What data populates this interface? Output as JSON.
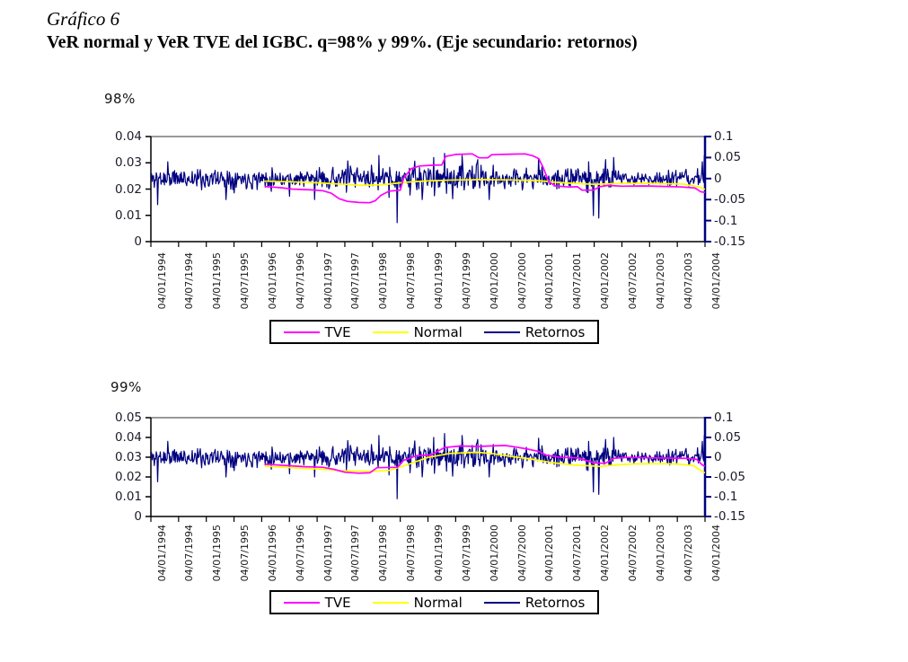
{
  "header": {
    "label": "Gráfico 6",
    "title": "VeR normal y VeR TVE del IGBC. q=98% y 99%. (Eje secundario: retornos)"
  },
  "legend": {
    "items": [
      {
        "label": "TVE",
        "color": "#FF00FF"
      },
      {
        "label": "Normal",
        "color": "#FFFF00"
      },
      {
        "label": "Retornos",
        "color": "#000080"
      }
    ]
  },
  "colors": {
    "tve": "#FF00FF",
    "normal": "#FFFF00",
    "retornos": "#000080",
    "axis_left_bottom": "#000000",
    "axis_top": "#999999",
    "axis_right": "#000080"
  },
  "chart_data": [
    {
      "type": "line",
      "title": "98%",
      "xlabel": "",
      "ylabel": "",
      "legend_position": "bottom",
      "grid": false,
      "x_range": [
        1994.0,
        2004.0
      ],
      "x_tick_labels": [
        "04/01/1994",
        "04/07/1994",
        "04/01/1995",
        "04/07/1995",
        "04/01/1996",
        "04/07/1996",
        "04/01/1997",
        "04/07/1997",
        "04/01/1998",
        "04/07/1998",
        "04/01/1999",
        "04/07/1999",
        "04/01/2000",
        "04/07/2000",
        "04/01/2001",
        "04/07/2001",
        "04/01/2002",
        "04/07/2002",
        "04/01/2003",
        "04/07/2003",
        "04/01/2004"
      ],
      "left_axis": {
        "min": 0,
        "max": 0.04,
        "tick_labels": [
          "0.04",
          "0.03",
          "0.02",
          "0.01",
          "0"
        ],
        "tick_values": [
          0.04,
          0.03,
          0.02,
          0.01,
          0
        ]
      },
      "right_axis": {
        "min": -0.15,
        "max": 0.1,
        "tick_labels": [
          "0.1",
          "0.05",
          "0",
          "-0.05",
          "-0.1",
          "-0.15"
        ],
        "tick_values": [
          0.1,
          0.05,
          0,
          -0.05,
          -0.1,
          -0.15
        ]
      },
      "series": [
        {
          "name": "TVE",
          "color": "#FF00FF",
          "axis": "left",
          "points": [
            [
              1996.05,
              0.021
            ],
            [
              1996.35,
              0.0205
            ],
            [
              1996.55,
              0.02
            ],
            [
              1996.9,
              0.0197
            ],
            [
              1997.1,
              0.0194
            ],
            [
              1997.25,
              0.0185
            ],
            [
              1997.4,
              0.0163
            ],
            [
              1997.55,
              0.0153
            ],
            [
              1997.75,
              0.0149
            ],
            [
              1997.95,
              0.0148
            ],
            [
              1998.05,
              0.0156
            ],
            [
              1998.15,
              0.0176
            ],
            [
              1998.3,
              0.0192
            ],
            [
              1998.5,
              0.0196
            ],
            [
              1998.56,
              0.0242
            ],
            [
              1998.7,
              0.0278
            ],
            [
              1998.85,
              0.0288
            ],
            [
              1999.1,
              0.0291
            ],
            [
              1999.25,
              0.0292
            ],
            [
              1999.32,
              0.0324
            ],
            [
              1999.5,
              0.0332
            ],
            [
              1999.8,
              0.0334
            ],
            [
              1999.92,
              0.0319
            ],
            [
              2000.08,
              0.0319
            ],
            [
              2000.15,
              0.0331
            ],
            [
              2000.5,
              0.0333
            ],
            [
              2000.75,
              0.0334
            ],
            [
              2000.9,
              0.0326
            ],
            [
              2001.0,
              0.0316
            ],
            [
              2001.08,
              0.0282
            ],
            [
              2001.18,
              0.0228
            ],
            [
              2001.3,
              0.0212
            ],
            [
              2001.55,
              0.0208
            ],
            [
              2001.7,
              0.0209
            ],
            [
              2001.78,
              0.0196
            ],
            [
              2001.98,
              0.0196
            ],
            [
              2002.1,
              0.0209
            ],
            [
              2002.25,
              0.0214
            ],
            [
              2002.5,
              0.0211
            ],
            [
              2002.9,
              0.0212
            ],
            [
              2003.3,
              0.021
            ],
            [
              2003.6,
              0.0208
            ],
            [
              2003.82,
              0.0204
            ],
            [
              2003.92,
              0.019
            ],
            [
              2004.0,
              0.0187
            ]
          ]
        },
        {
          "name": "Normal",
          "color": "#FFFF00",
          "axis": "left",
          "points": [
            [
              1996.05,
              0.023
            ],
            [
              1996.5,
              0.0228
            ],
            [
              1997.0,
              0.0224
            ],
            [
              1997.5,
              0.0218
            ],
            [
              1997.8,
              0.0214
            ],
            [
              1998.2,
              0.0217
            ],
            [
              1998.6,
              0.0226
            ],
            [
              1999.0,
              0.0231
            ],
            [
              1999.5,
              0.0235
            ],
            [
              2000.0,
              0.0236
            ],
            [
              2000.5,
              0.0235
            ],
            [
              2001.0,
              0.0232
            ],
            [
              2001.3,
              0.0226
            ],
            [
              2001.7,
              0.0221
            ],
            [
              2002.0,
              0.0218
            ],
            [
              2002.4,
              0.0221
            ],
            [
              2002.8,
              0.0222
            ],
            [
              2003.2,
              0.0221
            ],
            [
              2003.6,
              0.0219
            ],
            [
              2003.9,
              0.0208
            ],
            [
              2004.0,
              0.0199
            ]
          ]
        },
        {
          "name": "Retornos",
          "color": "#000080",
          "axis": "right",
          "noise": {
            "seed": 11,
            "n": 820,
            "mean": 0,
            "volatility": [
              [
                1994.0,
                0.012
              ],
              [
                1996.2,
                0.01
              ],
              [
                1997.2,
                0.013
              ],
              [
                1998.55,
                0.016
              ],
              [
                2000.35,
                0.012
              ],
              [
                2001.5,
                0.013
              ],
              [
                2002.4,
                0.0075
              ],
              [
                2003.25,
                0.0095
              ]
            ],
            "spikes": [
              [
                1994.12,
                -0.062
              ],
              [
                1994.3,
                0.04
              ],
              [
                1995.35,
                -0.05
              ],
              [
                1996.5,
                -0.042
              ],
              [
                1996.95,
                -0.05
              ],
              [
                1997.55,
                0.042
              ],
              [
                1998.12,
                0.055
              ],
              [
                1998.3,
                -0.045
              ],
              [
                1998.44,
                -0.105
              ],
              [
                1998.9,
                -0.05
              ],
              [
                1999.1,
                0.05
              ],
              [
                1999.3,
                0.06
              ],
              [
                1999.45,
                -0.048
              ],
              [
                1999.62,
                0.055
              ],
              [
                1999.9,
                0.045
              ],
              [
                2000.1,
                -0.05
              ],
              [
                2001.0,
                0.048
              ],
              [
                2001.9,
                0.04
              ],
              [
                2001.98,
                -0.088
              ],
              [
                2002.08,
                -0.094
              ],
              [
                2002.2,
                0.045
              ],
              [
                2002.35,
                0.05
              ],
              [
                2003.95,
                0.04
              ],
              [
                2003.99,
                0.055
              ]
            ]
          }
        }
      ]
    },
    {
      "type": "line",
      "title": "99%",
      "xlabel": "",
      "ylabel": "",
      "legend_position": "bottom",
      "grid": false,
      "x_range": [
        1994.0,
        2004.0
      ],
      "x_tick_labels": [
        "04/01/1994",
        "04/07/1994",
        "04/01/1995",
        "04/07/1995",
        "04/01/1996",
        "04/07/1996",
        "04/01/1997",
        "04/07/1997",
        "04/01/1998",
        "04/07/1998",
        "04/01/1999",
        "04/07/1999",
        "04/01/2000",
        "04/07/2000",
        "04/01/2001",
        "04/07/2001",
        "04/01/2002",
        "04/07/2002",
        "04/01/2003",
        "04/07/2003",
        "04/01/2004"
      ],
      "left_axis": {
        "min": 0,
        "max": 0.05,
        "tick_labels": [
          "0.05",
          "0.04",
          "0.03",
          "0.02",
          "0.01",
          "0"
        ],
        "tick_values": [
          0.05,
          0.04,
          0.03,
          0.02,
          0.01,
          0
        ]
      },
      "right_axis": {
        "min": -0.15,
        "max": 0.1,
        "tick_labels": [
          "0.1",
          "0.05",
          "0",
          "-0.05",
          "-0.1",
          "-0.15"
        ],
        "tick_values": [
          0.1,
          0.05,
          0,
          -0.05,
          -0.1,
          -0.15
        ]
      },
      "series": [
        {
          "name": "TVE",
          "color": "#FF00FF",
          "axis": "left",
          "points": [
            [
              1996.05,
              0.0265
            ],
            [
              1996.5,
              0.0257
            ],
            [
              1996.8,
              0.0252
            ],
            [
              1997.1,
              0.0249
            ],
            [
              1997.3,
              0.0239
            ],
            [
              1997.5,
              0.0224
            ],
            [
              1997.75,
              0.0219
            ],
            [
              1997.95,
              0.0221
            ],
            [
              1998.08,
              0.0247
            ],
            [
              1998.45,
              0.0249
            ],
            [
              1998.56,
              0.0284
            ],
            [
              1998.8,
              0.0308
            ],
            [
              1999.05,
              0.0311
            ],
            [
              1999.3,
              0.0349
            ],
            [
              1999.6,
              0.0357
            ],
            [
              1999.9,
              0.0354
            ],
            [
              2000.1,
              0.0357
            ],
            [
              2000.4,
              0.0359
            ],
            [
              2000.6,
              0.0351
            ],
            [
              2000.8,
              0.0341
            ],
            [
              2001.0,
              0.0329
            ],
            [
              2001.15,
              0.0309
            ],
            [
              2001.4,
              0.0299
            ],
            [
              2001.7,
              0.0297
            ],
            [
              2001.85,
              0.0284
            ],
            [
              2002.0,
              0.0271
            ],
            [
              2002.2,
              0.0269
            ],
            [
              2002.35,
              0.0294
            ],
            [
              2002.6,
              0.0299
            ],
            [
              2003.0,
              0.0297
            ],
            [
              2003.4,
              0.0295
            ],
            [
              2003.7,
              0.0294
            ],
            [
              2003.85,
              0.0289
            ],
            [
              2003.95,
              0.0261
            ],
            [
              2004.0,
              0.0254
            ]
          ]
        },
        {
          "name": "Normal",
          "color": "#FFFF00",
          "axis": "left",
          "points": [
            [
              1996.05,
              0.0255
            ],
            [
              1996.6,
              0.0246
            ],
            [
              1997.1,
              0.0239
            ],
            [
              1997.5,
              0.0231
            ],
            [
              1997.9,
              0.0228
            ],
            [
              1998.3,
              0.0233
            ],
            [
              1998.6,
              0.0259
            ],
            [
              1999.0,
              0.0299
            ],
            [
              1999.4,
              0.0319
            ],
            [
              1999.9,
              0.0325
            ],
            [
              2000.2,
              0.0317
            ],
            [
              2000.5,
              0.0304
            ],
            [
              2000.9,
              0.0289
            ],
            [
              2001.2,
              0.0274
            ],
            [
              2001.6,
              0.0261
            ],
            [
              2001.9,
              0.0257
            ],
            [
              2002.1,
              0.0253
            ],
            [
              2002.4,
              0.0261
            ],
            [
              2002.7,
              0.0266
            ],
            [
              2003.1,
              0.0267
            ],
            [
              2003.5,
              0.0266
            ],
            [
              2003.8,
              0.0257
            ],
            [
              2003.93,
              0.0231
            ],
            [
              2004.0,
              0.0221
            ]
          ]
        },
        {
          "name": "Retornos",
          "color": "#000080",
          "axis": "right",
          "noise": {
            "seed": 11,
            "n": 820,
            "mean": 0,
            "volatility": [
              [
                1994.0,
                0.012
              ],
              [
                1996.2,
                0.01
              ],
              [
                1997.2,
                0.013
              ],
              [
                1998.55,
                0.016
              ],
              [
                2000.35,
                0.012
              ],
              [
                2001.5,
                0.013
              ],
              [
                2002.4,
                0.0075
              ],
              [
                2003.25,
                0.0095
              ]
            ],
            "spikes": [
              [
                1994.12,
                -0.062
              ],
              [
                1994.3,
                0.04
              ],
              [
                1995.35,
                -0.05
              ],
              [
                1996.5,
                -0.042
              ],
              [
                1996.95,
                -0.05
              ],
              [
                1997.55,
                0.042
              ],
              [
                1998.12,
                0.055
              ],
              [
                1998.3,
                -0.045
              ],
              [
                1998.44,
                -0.105
              ],
              [
                1998.9,
                -0.05
              ],
              [
                1999.1,
                0.05
              ],
              [
                1999.3,
                0.06
              ],
              [
                1999.45,
                -0.048
              ],
              [
                1999.62,
                0.055
              ],
              [
                1999.9,
                0.045
              ],
              [
                2000.1,
                -0.05
              ],
              [
                2001.0,
                0.048
              ],
              [
                2001.9,
                0.04
              ],
              [
                2001.98,
                -0.088
              ],
              [
                2002.08,
                -0.094
              ],
              [
                2002.2,
                0.045
              ],
              [
                2002.35,
                0.05
              ],
              [
                2003.95,
                0.04
              ],
              [
                2003.99,
                0.055
              ]
            ]
          }
        }
      ]
    }
  ]
}
